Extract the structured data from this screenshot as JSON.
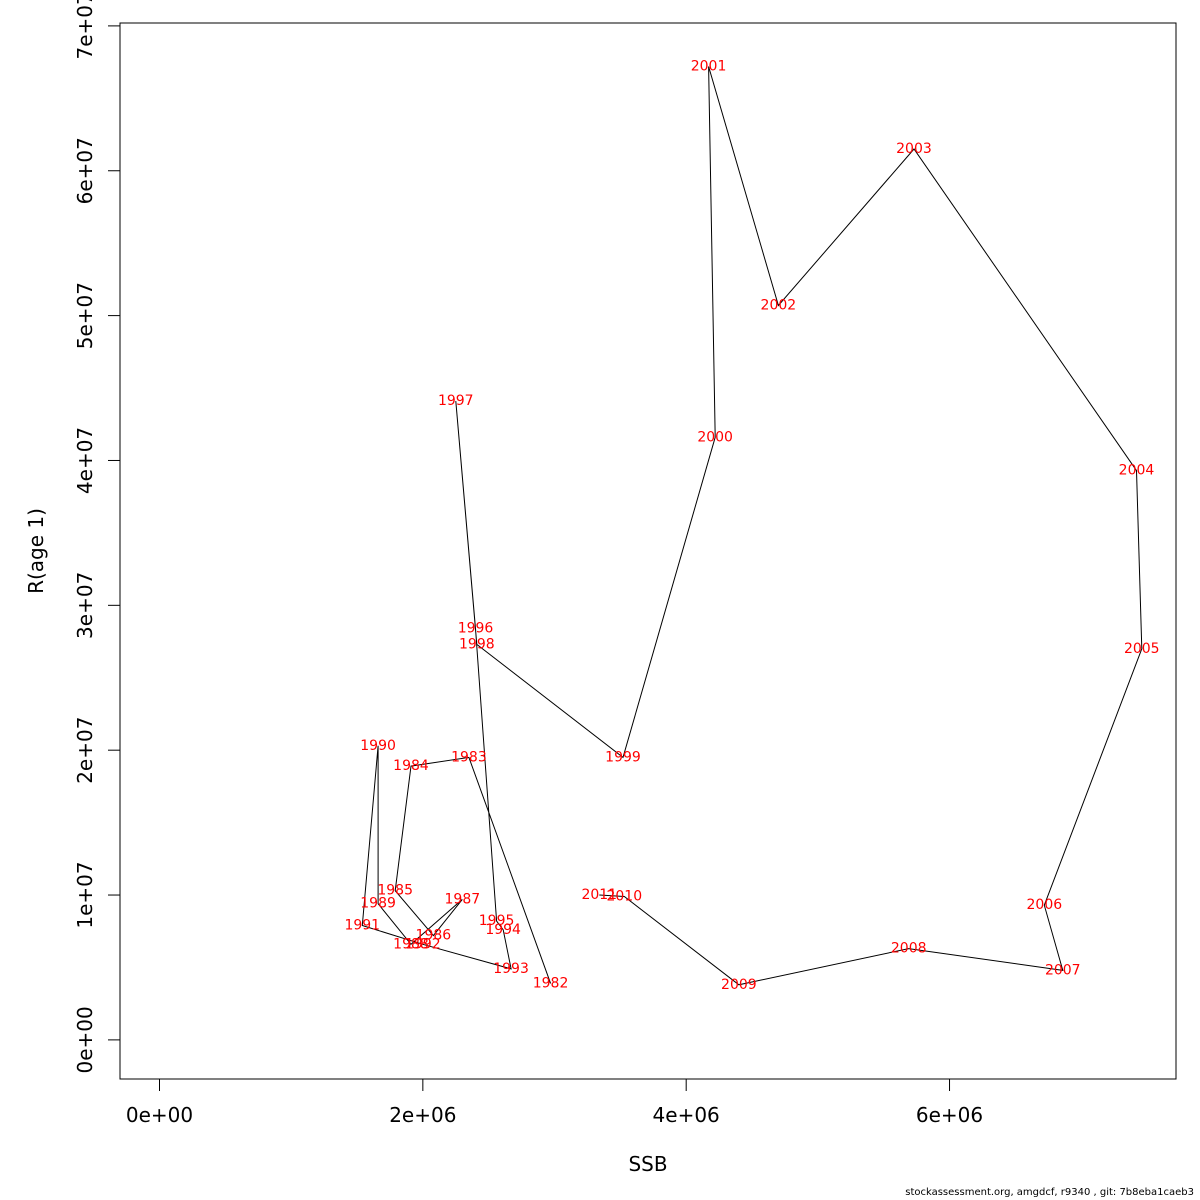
{
  "chart_data": {
    "type": "scatter",
    "xlabel": "SSB",
    "ylabel": "R(age 1)",
    "xlim": [
      -300000,
      7720000
    ],
    "ylim": [
      -2700000,
      70200000
    ],
    "x_ticks": [
      {
        "value": 0,
        "label": "0e+00"
      },
      {
        "value": 2000000,
        "label": "2e+06"
      },
      {
        "value": 4000000,
        "label": "4e+06"
      },
      {
        "value": 6000000,
        "label": "6e+06"
      }
    ],
    "y_ticks": [
      {
        "value": 0,
        "label": "0e+00"
      },
      {
        "value": 10000000,
        "label": "1e+07"
      },
      {
        "value": 20000000,
        "label": "2e+07"
      },
      {
        "value": 30000000,
        "label": "3e+07"
      },
      {
        "value": 40000000,
        "label": "4e+07"
      },
      {
        "value": 50000000,
        "label": "5e+07"
      },
      {
        "value": 60000000,
        "label": "6e+07"
      },
      {
        "value": 70000000,
        "label": "7e+07"
      }
    ],
    "line_color": "#000000",
    "label_color": "#ff0000",
    "connected": true,
    "points": [
      {
        "year": "1982",
        "x": 2970000,
        "y": 3900000
      },
      {
        "year": "1983",
        "x": 2350000,
        "y": 19500000
      },
      {
        "year": "1984",
        "x": 1910000,
        "y": 18900000
      },
      {
        "year": "1985",
        "x": 1790000,
        "y": 10300000
      },
      {
        "year": "1986",
        "x": 2080000,
        "y": 7200000
      },
      {
        "year": "1987",
        "x": 2300000,
        "y": 9700000
      },
      {
        "year": "1988",
        "x": 1910000,
        "y": 6600000
      },
      {
        "year": "1989",
        "x": 1660000,
        "y": 9400000
      },
      {
        "year": "1990",
        "x": 1660000,
        "y": 20300000
      },
      {
        "year": "1991",
        "x": 1540000,
        "y": 7900000
      },
      {
        "year": "1992",
        "x": 2000000,
        "y": 6600000
      },
      {
        "year": "1993",
        "x": 2670000,
        "y": 4900000
      },
      {
        "year": "1994",
        "x": 2610000,
        "y": 7600000
      },
      {
        "year": "1995",
        "x": 2560000,
        "y": 8200000
      },
      {
        "year": "1996",
        "x": 2400000,
        "y": 28400000
      },
      {
        "year": "1997",
        "x": 2250000,
        "y": 44100000
      },
      {
        "year": "1998",
        "x": 2410000,
        "y": 27300000
      },
      {
        "year": "1999",
        "x": 3520000,
        "y": 19500000
      },
      {
        "year": "2000",
        "x": 4220000,
        "y": 41600000
      },
      {
        "year": "2001",
        "x": 4170000,
        "y": 67200000
      },
      {
        "year": "2002",
        "x": 4700000,
        "y": 50700000
      },
      {
        "year": "2003",
        "x": 5730000,
        "y": 61500000
      },
      {
        "year": "2004",
        "x": 7420000,
        "y": 39300000
      },
      {
        "year": "2005",
        "x": 7460000,
        "y": 27000000
      },
      {
        "year": "2006",
        "x": 6720000,
        "y": 9300000
      },
      {
        "year": "2007",
        "x": 6860000,
        "y": 4800000
      },
      {
        "year": "2008",
        "x": 5690000,
        "y": 6300000
      },
      {
        "year": "2009",
        "x": 4400000,
        "y": 3800000
      },
      {
        "year": "2010",
        "x": 3530000,
        "y": 9900000
      },
      {
        "year": "2011",
        "x": 3340000,
        "y": 10000000
      }
    ]
  },
  "footer": {
    "text": "stockassessment.org, amgdcf, r9340 , git: 7b8eba1caeb3"
  }
}
